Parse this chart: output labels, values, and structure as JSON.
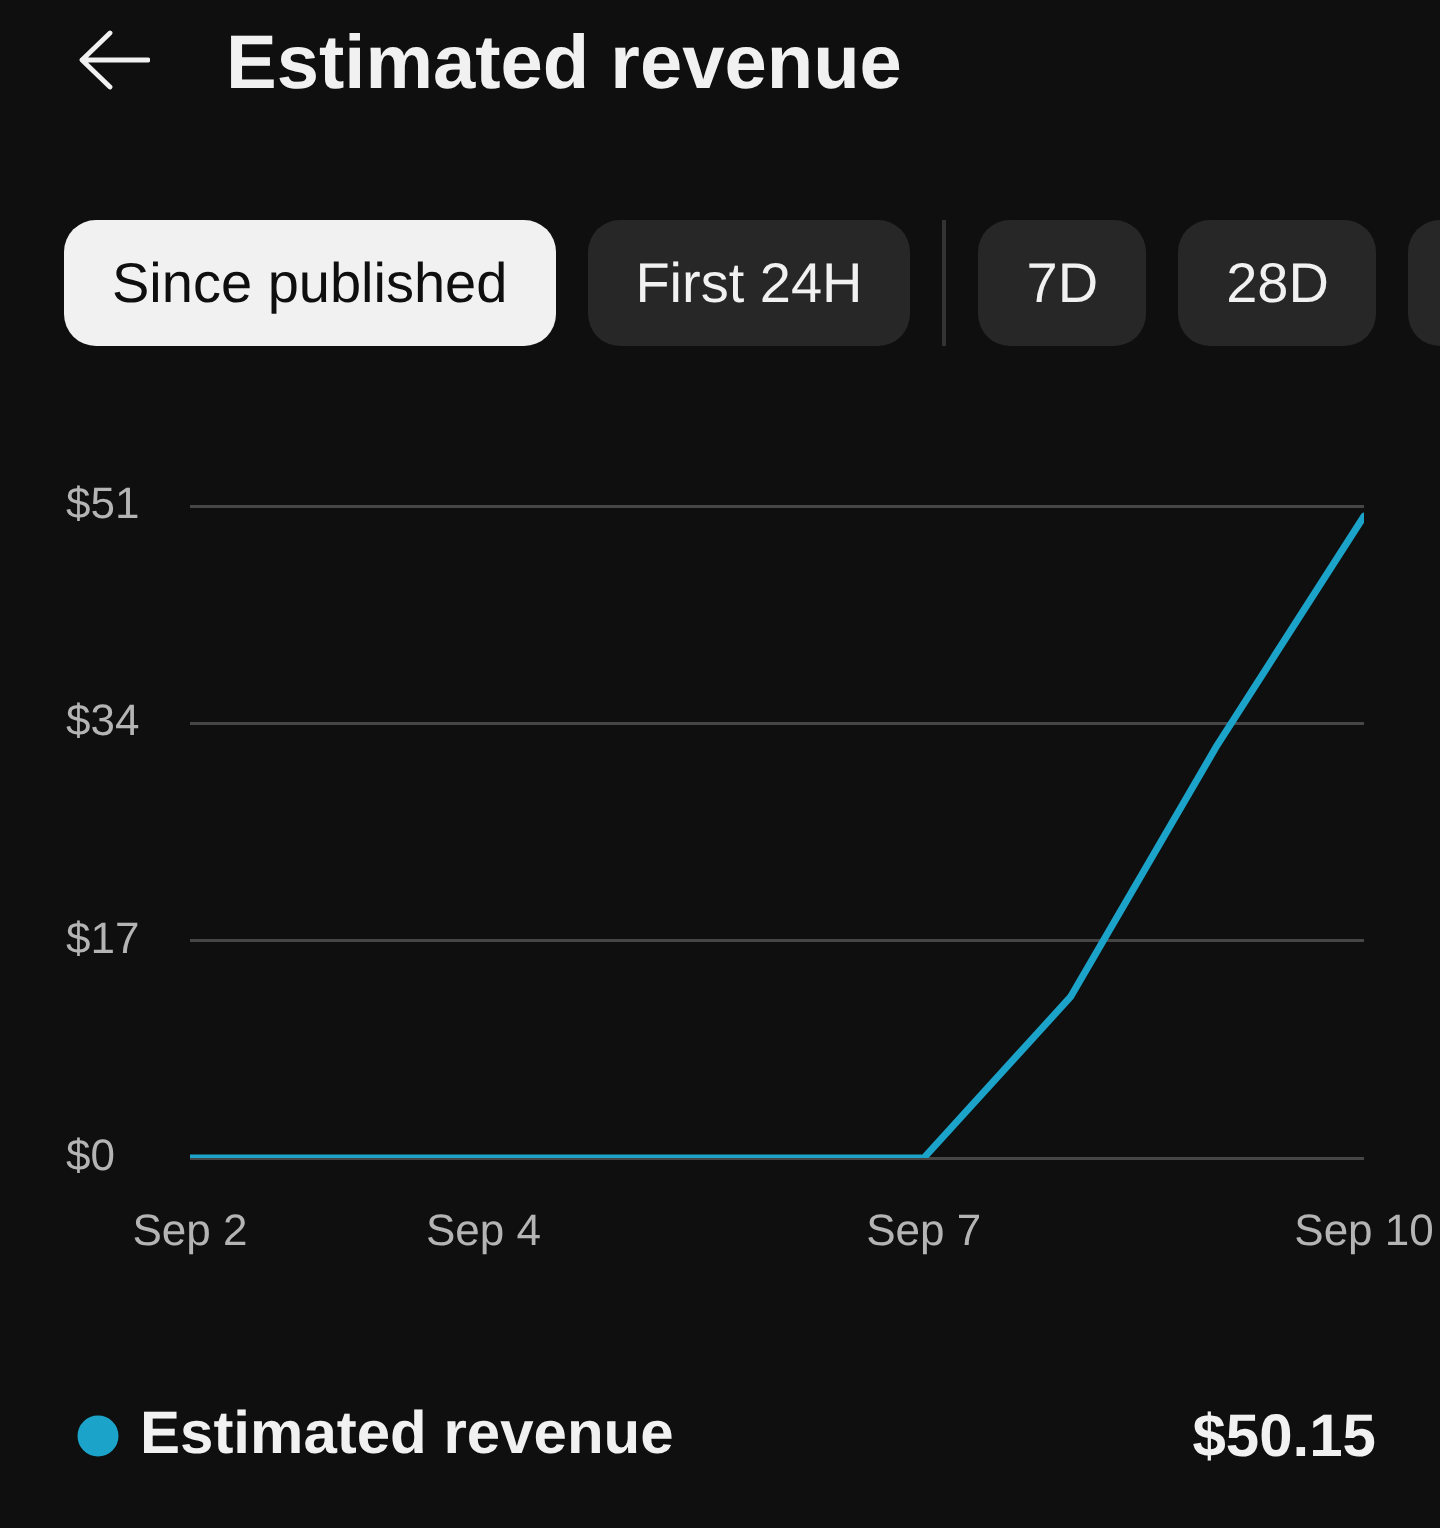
{
  "chart_data": {
    "type": "line",
    "title": "Estimated revenue",
    "annotations": [
      "Since published",
      "First 24H",
      "7D",
      "28D",
      "$50.15"
    ],
    "x": [
      "--09-02",
      "--09-03",
      "--09-04",
      "--09-05",
      "--09-06",
      "--09-07",
      "--09-08",
      "--09-09",
      "--09-10"
    ],
    "series": [
      {
        "name": "Estimated revenue",
        "color": "#1ba3c9",
        "values": [
          0,
          0,
          0,
          0,
          0,
          0,
          12.6,
          32.3,
          50.2
        ]
      }
    ],
    "xlim": [
      "--09-02",
      "--09-10"
    ],
    "xticks": [
      {
        "value": "--09-02",
        "label": "Sep 2"
      },
      {
        "value": "--09-04",
        "label": "Sep 4"
      },
      {
        "value": "--09-07",
        "label": "Sep 7"
      },
      {
        "value": "--09-10",
        "label": "Sep 10"
      }
    ],
    "ylim": [
      0,
      51
    ],
    "yticks": [
      {
        "value": 0,
        "label": "$0"
      },
      {
        "value": 17,
        "label": "$17"
      },
      {
        "value": 34,
        "label": "$34"
      },
      {
        "value": 51,
        "label": "$51"
      }
    ],
    "grid": "y",
    "legend": "bottom left"
  }
}
